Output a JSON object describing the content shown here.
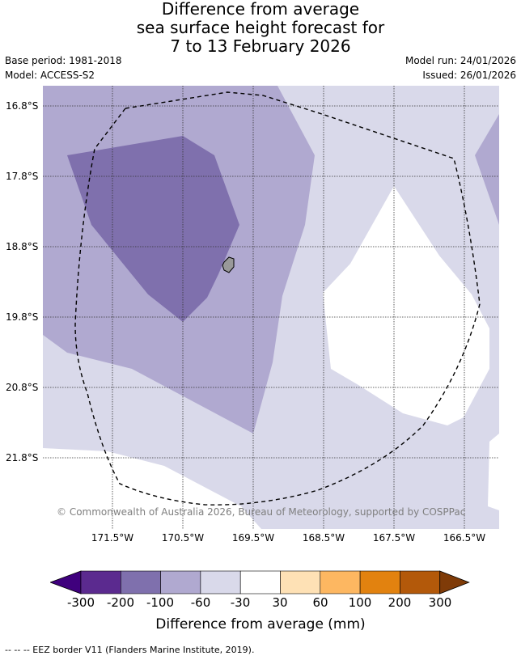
{
  "title": {
    "line1": "Difference from average",
    "line2": "sea surface height forecast for",
    "line3": "7 to 13 February 2026"
  },
  "meta": {
    "base_period": "Base period: 1981-2018",
    "model": "Model: ACCESS-S2",
    "model_run": "Model run: 24/01/2026",
    "issued": "Issued: 26/01/2026"
  },
  "axes": {
    "lat_labels": [
      "16.8°S",
      "17.8°S",
      "18.8°S",
      "19.8°S",
      "20.8°S",
      "21.8°S"
    ],
    "lon_labels": [
      "171.5°W",
      "170.5°W",
      "169.5°W",
      "168.5°W",
      "167.5°W",
      "166.5°W"
    ]
  },
  "copyright": "© Commonwealth of Australia 2026, Bureau of Meteorology, supported by COSPPac",
  "colorbar": {
    "ticks": [
      "-300",
      "-200",
      "-100",
      "-60",
      "-30",
      "30",
      "60",
      "100",
      "200",
      "300"
    ],
    "colors": [
      "#3f007d",
      "#5b2a8f",
      "#7f70ad",
      "#b0a9d0",
      "#d9d9ea",
      "#ffffff",
      "#fee1b5",
      "#fdb761",
      "#e2820f",
      "#b3590a",
      "#7f3b08"
    ],
    "label": "Difference from average (mm)"
  },
  "legend": "-- -- -- EEZ border V11 (Flanders Marine Institute, 2019).",
  "map_colors": {
    "band_30_60": "#d9d9ea",
    "band_60_100": "#b0a9d0",
    "band_100_200": "#7f70ad",
    "land": "#999999"
  }
}
